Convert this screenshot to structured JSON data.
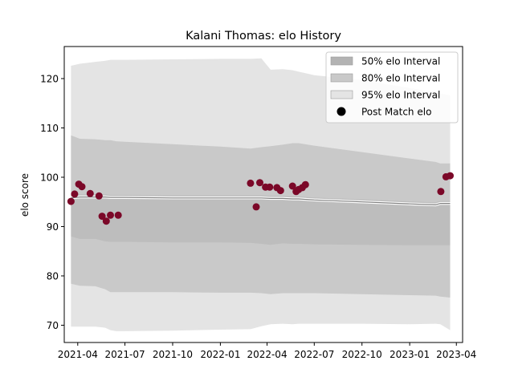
{
  "chart_data": {
    "type": "scatter",
    "title": "Kalani Thomas: elo History",
    "xlabel": "",
    "ylabel": "elo score",
    "xlim": [
      "2021-03-06",
      "2023-04-13"
    ],
    "ylim": [
      66.5,
      126.5
    ],
    "yticks": [
      70,
      80,
      90,
      100,
      110,
      120
    ],
    "xticks": [
      {
        "date": "2021-04-01",
        "label": "2021-04"
      },
      {
        "date": "2021-07-01",
        "label": "2021-07"
      },
      {
        "date": "2021-10-01",
        "label": "2021-10"
      },
      {
        "date": "2022-01-01",
        "label": "2022-01"
      },
      {
        "date": "2022-04-01",
        "label": "2022-04"
      },
      {
        "date": "2022-07-01",
        "label": "2022-07"
      },
      {
        "date": "2022-10-01",
        "label": "2022-10"
      },
      {
        "date": "2023-01-01",
        "label": "2023-01"
      },
      {
        "date": "2023-04-01",
        "label": "2023-04"
      }
    ],
    "legend_position": "top-right",
    "legend": [
      {
        "label": "50% elo Interval",
        "kind": "patch",
        "color": "#b3b3b3"
      },
      {
        "label": "80% elo Interval",
        "kind": "patch",
        "color": "#c9c9c9"
      },
      {
        "label": "95% elo Interval",
        "kind": "patch",
        "color": "#e4e4e4"
      },
      {
        "label": "Post Match elo",
        "kind": "marker",
        "color": "#000000"
      }
    ],
    "colors": {
      "band95": "#e4e4e4",
      "band80": "#c9c9c9",
      "band50": "#b3b3b3",
      "mean_line": "#7f7f7f",
      "points": "#7b0828"
    },
    "bands": {
      "dates": [
        "2021-03-19",
        "2021-04-05",
        "2021-05-05",
        "2021-05-24",
        "2021-06-03",
        "2021-06-14",
        "2021-07-01",
        "2021-10-01",
        "2022-01-01",
        "2022-02-28",
        "2022-03-21",
        "2022-04-08",
        "2022-05-01",
        "2022-05-20",
        "2022-06-01",
        "2022-07-01",
        "2022-10-01",
        "2023-01-01",
        "2023-02-20",
        "2023-03-01",
        "2023-03-20"
      ],
      "mean": [
        95.8,
        96.0,
        96.0,
        96.0,
        95.9,
        95.9,
        95.9,
        95.8,
        95.8,
        95.8,
        95.8,
        95.7,
        95.7,
        95.6,
        95.6,
        95.4,
        95.0,
        94.6,
        94.4,
        94.7,
        94.7
      ],
      "p50_lo": [
        95.3,
        95.5,
        95.5,
        95.5,
        95.4,
        95.4,
        95.4,
        95.3,
        95.3,
        95.3,
        95.3,
        95.2,
        95.2,
        95.1,
        95.1,
        94.9,
        94.5,
        94.1,
        93.9,
        94.2,
        94.2
      ],
      "p50_hi": [
        96.3,
        96.5,
        96.5,
        96.5,
        96.4,
        96.4,
        96.4,
        96.3,
        96.3,
        96.3,
        96.3,
        96.2,
        96.2,
        96.1,
        96.1,
        95.9,
        95.5,
        95.1,
        94.9,
        95.2,
        95.2
      ],
      "p80_lo": [
        88.0,
        87.5,
        87.5,
        87.0,
        86.9,
        86.9,
        86.9,
        86.8,
        86.8,
        86.7,
        86.5,
        86.3,
        86.6,
        86.5,
        86.5,
        86.4,
        86.3,
        86.2,
        86.2,
        86.2,
        86.2
      ],
      "p80_hi": [
        108.5,
        107.8,
        107.7,
        107.5,
        107.5,
        107.3,
        107.2,
        106.7,
        106.2,
        105.8,
        106.1,
        106.3,
        106.6,
        106.9,
        106.9,
        106.4,
        105.1,
        103.8,
        103.1,
        102.8,
        102.8
      ],
      "p95_lo": [
        78.4,
        78.0,
        77.9,
        77.3,
        76.7,
        76.7,
        76.7,
        76.7,
        76.6,
        76.6,
        76.5,
        76.3,
        76.5,
        76.5,
        76.5,
        76.5,
        76.3,
        76.1,
        76.0,
        75.8,
        75.6
      ],
      "p95_hi": [
        122.6,
        123.0,
        123.4,
        123.6,
        123.8,
        123.8,
        123.8,
        123.9,
        124.0,
        124.0,
        124.1,
        121.8,
        121.9,
        121.7,
        121.4,
        120.7,
        119.7,
        118.1,
        117.3,
        117.0,
        116.6
      ],
      "outer_lo": [
        69.7,
        69.7,
        69.7,
        69.5,
        69.0,
        68.8,
        68.8,
        68.9,
        69.1,
        69.2,
        69.8,
        70.2,
        70.3,
        70.2,
        70.3,
        70.3,
        70.3,
        70.2,
        70.3,
        70.2,
        69.0
      ]
    },
    "points": [
      {
        "date": "2021-03-19",
        "elo": 95.1
      },
      {
        "date": "2021-03-26",
        "elo": 96.6
      },
      {
        "date": "2021-04-03",
        "elo": 98.6
      },
      {
        "date": "2021-04-09",
        "elo": 98.1
      },
      {
        "date": "2021-04-25",
        "elo": 96.7
      },
      {
        "date": "2021-05-12",
        "elo": 96.2
      },
      {
        "date": "2021-05-18",
        "elo": 92.1
      },
      {
        "date": "2021-05-26",
        "elo": 91.1
      },
      {
        "date": "2021-06-03",
        "elo": 92.3
      },
      {
        "date": "2021-06-18",
        "elo": 92.3
      },
      {
        "date": "2022-02-28",
        "elo": 98.8
      },
      {
        "date": "2022-03-11",
        "elo": 94.0
      },
      {
        "date": "2022-03-18",
        "elo": 98.9
      },
      {
        "date": "2022-03-29",
        "elo": 98.0
      },
      {
        "date": "2022-04-06",
        "elo": 98.0
      },
      {
        "date": "2022-04-20",
        "elo": 97.9
      },
      {
        "date": "2022-04-27",
        "elo": 97.3
      },
      {
        "date": "2022-05-20",
        "elo": 98.2
      },
      {
        "date": "2022-05-27",
        "elo": 97.1
      },
      {
        "date": "2022-06-01",
        "elo": 97.5
      },
      {
        "date": "2022-06-08",
        "elo": 97.9
      },
      {
        "date": "2022-06-14",
        "elo": 98.5
      },
      {
        "date": "2023-03-02",
        "elo": 97.1
      },
      {
        "date": "2023-03-12",
        "elo": 100.1
      },
      {
        "date": "2023-03-20",
        "elo": 100.3
      }
    ]
  }
}
